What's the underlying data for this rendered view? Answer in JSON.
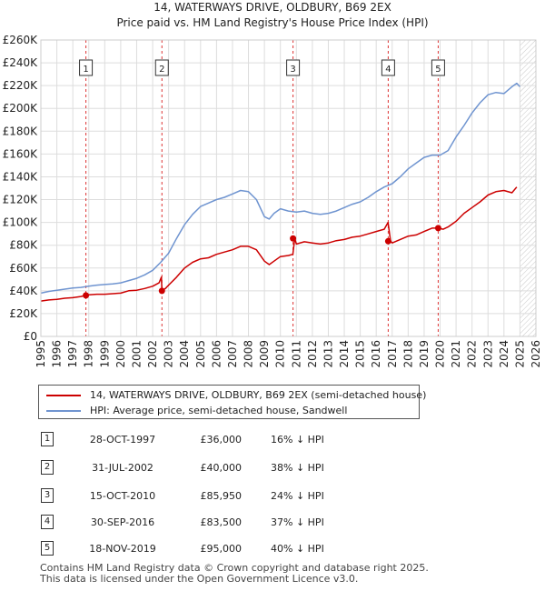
{
  "chart_data": {
    "type": "line",
    "title": "14, WATERWAYS DRIVE, OLDBURY, B69 2EX",
    "subtitle": "Price paid vs. HM Land Registry's House Price Index (HPI)",
    "xlim": [
      1995,
      2026
    ],
    "ylim": [
      0,
      260000
    ],
    "x_ticks": [
      "1995",
      "1996",
      "1997",
      "1998",
      "1999",
      "2000",
      "2001",
      "2002",
      "2003",
      "2004",
      "2005",
      "2006",
      "2007",
      "2008",
      "2009",
      "2010",
      "2011",
      "2012",
      "2013",
      "2014",
      "2015",
      "2016",
      "2017",
      "2018",
      "2019",
      "2020",
      "2021",
      "2022",
      "2023",
      "2024",
      "2025",
      "2026"
    ],
    "y_ticks": [
      {
        "value": 0,
        "label": "£0"
      },
      {
        "value": 20000,
        "label": "£20K"
      },
      {
        "value": 40000,
        "label": "£40K"
      },
      {
        "value": 60000,
        "label": "£60K"
      },
      {
        "value": 80000,
        "label": "£80K"
      },
      {
        "value": 100000,
        "label": "£100K"
      },
      {
        "value": 120000,
        "label": "£120K"
      },
      {
        "value": 140000,
        "label": "£140K"
      },
      {
        "value": 160000,
        "label": "£160K"
      },
      {
        "value": 180000,
        "label": "£180K"
      },
      {
        "value": 200000,
        "label": "£200K"
      },
      {
        "value": 220000,
        "label": "£220K"
      },
      {
        "value": 240000,
        "label": "£240K"
      },
      {
        "value": 260000,
        "label": "£260K"
      }
    ],
    "grid": true,
    "hatch_from": 2025.0,
    "series": [
      {
        "name": "14, WATERWAYS DRIVE, OLDBURY, B69 2EX (semi-detached house)",
        "color": "#cc0000",
        "x": [
          1995.0,
          1995.5,
          1996.0,
          1996.5,
          1997.0,
          1997.5,
          1997.82,
          1998.0,
          1998.5,
          1999.0,
          1999.5,
          2000.0,
          2000.5,
          2001.0,
          2001.5,
          2002.0,
          2002.4,
          2002.55,
          2002.58,
          2002.8,
          2003.0,
          2003.5,
          2004.0,
          2004.5,
          2005.0,
          2005.5,
          2006.0,
          2006.5,
          2007.0,
          2007.5,
          2008.0,
          2008.5,
          2009.0,
          2009.3,
          2009.6,
          2010.0,
          2010.5,
          2010.78,
          2010.9,
          2011.0,
          2011.5,
          2012.0,
          2012.5,
          2013.0,
          2013.5,
          2014.0,
          2014.5,
          2015.0,
          2015.5,
          2016.0,
          2016.5,
          2016.74,
          2016.9,
          2017.0,
          2017.5,
          2018.0,
          2018.5,
          2019.0,
          2019.5,
          2019.88,
          2020.2,
          2020.5,
          2021.0,
          2021.5,
          2022.0,
          2022.5,
          2023.0,
          2023.5,
          2024.0,
          2024.5,
          2024.8
        ],
        "values": [
          31000,
          32000,
          32500,
          33500,
          34000,
          35000,
          36000,
          36500,
          37000,
          37000,
          37500,
          38000,
          40000,
          40500,
          42000,
          44000,
          47000,
          52000,
          40000,
          42000,
          45000,
          52000,
          60000,
          65000,
          68000,
          69000,
          72000,
          74000,
          76000,
          79000,
          79000,
          76000,
          66000,
          63000,
          66000,
          70000,
          71000,
          72000,
          85950,
          81000,
          83000,
          82000,
          81000,
          82000,
          84000,
          85000,
          87000,
          88000,
          90000,
          92000,
          94000,
          100000,
          83500,
          82000,
          85000,
          88000,
          89000,
          92000,
          95000,
          95000,
          94000,
          96000,
          101000,
          108000,
          113000,
          118000,
          124000,
          127000,
          128000,
          126000,
          131000
        ]
      },
      {
        "name": "HPI: Average price, semi-detached house, Sandwell",
        "color": "#6f94d0",
        "x": [
          1995.0,
          1995.5,
          1996.0,
          1996.5,
          1997.0,
          1997.5,
          1998.0,
          1998.5,
          1999.0,
          1999.5,
          2000.0,
          2000.5,
          2001.0,
          2001.5,
          2002.0,
          2002.5,
          2003.0,
          2003.5,
          2004.0,
          2004.5,
          2005.0,
          2005.5,
          2006.0,
          2006.5,
          2007.0,
          2007.5,
          2008.0,
          2008.5,
          2009.0,
          2009.3,
          2009.6,
          2010.0,
          2010.5,
          2011.0,
          2011.5,
          2012.0,
          2012.5,
          2013.0,
          2013.5,
          2014.0,
          2014.5,
          2015.0,
          2015.5,
          2016.0,
          2016.5,
          2017.0,
          2017.5,
          2018.0,
          2018.5,
          2019.0,
          2019.5,
          2020.0,
          2020.5,
          2021.0,
          2021.5,
          2022.0,
          2022.5,
          2023.0,
          2023.5,
          2024.0,
          2024.5,
          2024.8,
          2025.0
        ],
        "values": [
          38000,
          39500,
          40500,
          41500,
          42500,
          43000,
          44000,
          45000,
          45500,
          46000,
          47000,
          49000,
          51000,
          54000,
          58000,
          65000,
          73000,
          86000,
          98000,
          107000,
          114000,
          117000,
          120000,
          122000,
          125000,
          128000,
          127000,
          120000,
          105000,
          103000,
          108000,
          112000,
          110000,
          109000,
          110000,
          108000,
          107000,
          108000,
          110000,
          113000,
          116000,
          118000,
          122000,
          127000,
          131000,
          134000,
          140000,
          147000,
          152000,
          157000,
          159000,
          159000,
          163000,
          175000,
          185000,
          196000,
          205000,
          212000,
          214000,
          213000,
          219000,
          222000,
          219000
        ]
      }
    ],
    "sales": [
      {
        "label": "1",
        "year": 1997.82,
        "price": 36000
      },
      {
        "label": "2",
        "year": 2002.58,
        "price": 40000
      },
      {
        "label": "3",
        "year": 2010.79,
        "price": 85950
      },
      {
        "label": "4",
        "year": 2016.75,
        "price": 83500
      },
      {
        "label": "5",
        "year": 2019.88,
        "price": 95000
      }
    ]
  },
  "legend": {
    "property": "14, WATERWAYS DRIVE, OLDBURY, B69 2EX (semi-detached house)",
    "hpi": "HPI: Average price, semi-detached house, Sandwell"
  },
  "sales_table": [
    {
      "num": "1",
      "date": "28-OCT-1997",
      "price": "£36,000",
      "hpi": "16% ↓ HPI"
    },
    {
      "num": "2",
      "date": "31-JUL-2002",
      "price": "£40,000",
      "hpi": "38% ↓ HPI"
    },
    {
      "num": "3",
      "date": "15-OCT-2010",
      "price": "£85,950",
      "hpi": "24% ↓ HPI"
    },
    {
      "num": "4",
      "date": "30-SEP-2016",
      "price": "£83,500",
      "hpi": "37% ↓ HPI"
    },
    {
      "num": "5",
      "date": "18-NOV-2019",
      "price": "£95,000",
      "hpi": "40% ↓ HPI"
    }
  ],
  "footer": "Contains HM Land Registry data © Crown copyright and database right 2025.\nThis data is licensed under the Open Government Licence v3.0."
}
